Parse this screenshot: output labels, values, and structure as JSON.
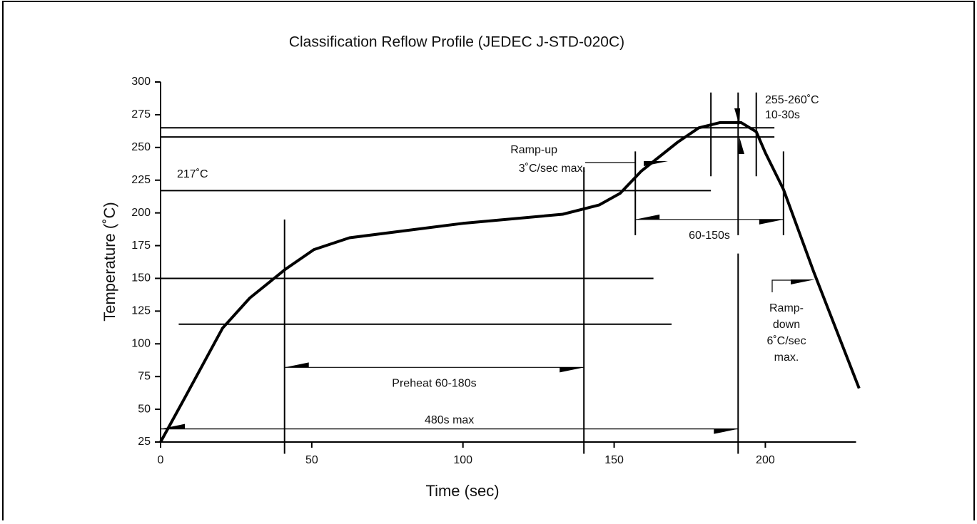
{
  "chart_data": {
    "type": "line",
    "title": "Classification Reflow Profile (JEDEC J-STD-020C)",
    "x_label": "Time (sec)",
    "y_label": "Temperature (˚C)",
    "x": [
      0,
      8.3,
      20.5,
      29.5,
      41.3,
      50.7,
      62.5,
      100,
      133,
      145,
      152,
      159,
      171,
      178,
      185,
      192,
      197,
      200,
      206,
      216,
      231
    ],
    "values": [
      25,
      60,
      112,
      135,
      157,
      172,
      181,
      192,
      199,
      206,
      215,
      232,
      254,
      265,
      269,
      269,
      262,
      246,
      218,
      155,
      66
    ],
    "color": "#000000",
    "xlim": [
      0,
      232
    ],
    "xticks": [
      0,
      50,
      100,
      150,
      200
    ],
    "ylim": [
      25,
      300
    ],
    "yticks": [
      25,
      50,
      75,
      100,
      125,
      150,
      175,
      200,
      225,
      250,
      275,
      300
    ],
    "hlines": [
      {
        "y": 265,
        "x": [
          0,
          203
        ]
      },
      {
        "y": 258,
        "x": [
          0,
          203
        ]
      },
      {
        "y": 217,
        "x": [
          0,
          182
        ]
      },
      {
        "y": 150,
        "x": [
          0,
          163
        ]
      },
      {
        "y": 115,
        "x": [
          6,
          169
        ]
      },
      {
        "y": 25,
        "x": [
          0,
          230
        ]
      }
    ],
    "vlines": [
      {
        "x": 41,
        "y": [
          16,
          195
        ]
      },
      {
        "x": 140,
        "y": [
          16,
          235
        ]
      },
      {
        "x": 157,
        "y": [
          183,
          247
        ]
      },
      {
        "x": 206,
        "y": [
          183,
          247
        ]
      },
      {
        "x": 191,
        "y": [
          16,
          169
        ]
      },
      {
        "x": 191,
        "y": [
          183,
          292
        ]
      },
      {
        "x": 182,
        "y": [
          228,
          292
        ]
      },
      {
        "x": 197,
        "y": [
          228,
          292
        ]
      }
    ],
    "spans": [
      {
        "label": "Preheat 60-180s",
        "x": [
          41,
          140
        ],
        "y": 82
      },
      {
        "label": "480s max",
        "x": [
          0,
          191
        ],
        "y": 35
      },
      {
        "label": "60-150s",
        "x": [
          157,
          206
        ],
        "y": 195
      }
    ],
    "annotations": [
      "217˚C",
      "Ramp-up",
      "3˚C/sec max.",
      "255-260˚C",
      "10-30s",
      "Ramp-",
      "down",
      "6˚C/sec",
      "max."
    ]
  }
}
